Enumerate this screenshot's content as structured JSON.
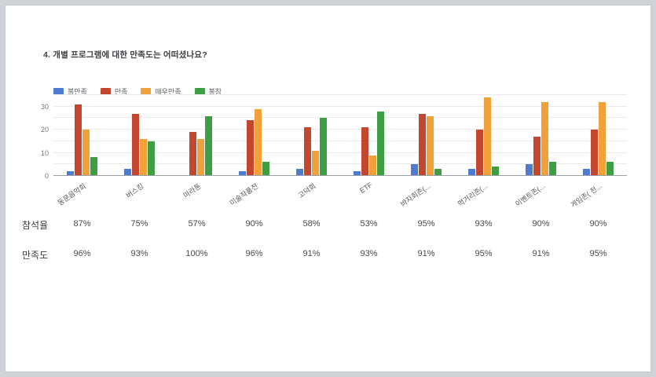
{
  "slide": {
    "title": "4. 개별 프로그램에 대한 만족도는 어떠셨나요?"
  },
  "chart_data": {
    "type": "bar",
    "title": "4. 개별 프로그램에 대한 만족도는 어떠셨나요?",
    "categories": [
      "동문음악회",
      "버스킹",
      "마라톤",
      "미술작품전",
      "고덕회",
      "ETF",
      "바자회존(...",
      "먹거리존(...",
      "이벤트존(...",
      "게임존( 전..."
    ],
    "series": [
      {
        "name": "불만족",
        "color": "#4d7bd0",
        "values": [
          2,
          3,
          0,
          2,
          3,
          2,
          5,
          3,
          5,
          3
        ]
      },
      {
        "name": "만족",
        "color": "#c3472e",
        "values": [
          31,
          27,
          19,
          24,
          21,
          21,
          27,
          20,
          17,
          20
        ]
      },
      {
        "name": "매우만족",
        "color": "#f1a13a",
        "values": [
          20,
          16,
          16,
          29,
          11,
          9,
          26,
          34,
          32,
          32
        ]
      },
      {
        "name": "불참",
        "color": "#3f9e44",
        "values": [
          8,
          15,
          26,
          6,
          25,
          28,
          3,
          4,
          6,
          6
        ]
      }
    ],
    "xlabel": "",
    "ylabel": "",
    "ylim": [
      0,
      35
    ],
    "yticks": [
      0,
      10,
      20,
      30
    ],
    "grid_step": 5,
    "grid": true,
    "legend_position": "top-left"
  },
  "stats_table": {
    "rows": [
      {
        "label": "참석율",
        "values": [
          "87%",
          "75%",
          "57%",
          "90%",
          "58%",
          "53%",
          "95%",
          "93%",
          "90%",
          "90%"
        ]
      },
      {
        "label": "만족도",
        "values": [
          "96%",
          "93%",
          "100%",
          "96%",
          "91%",
          "93%",
          "91%",
          "95%",
          "91%",
          "95%"
        ]
      }
    ]
  }
}
